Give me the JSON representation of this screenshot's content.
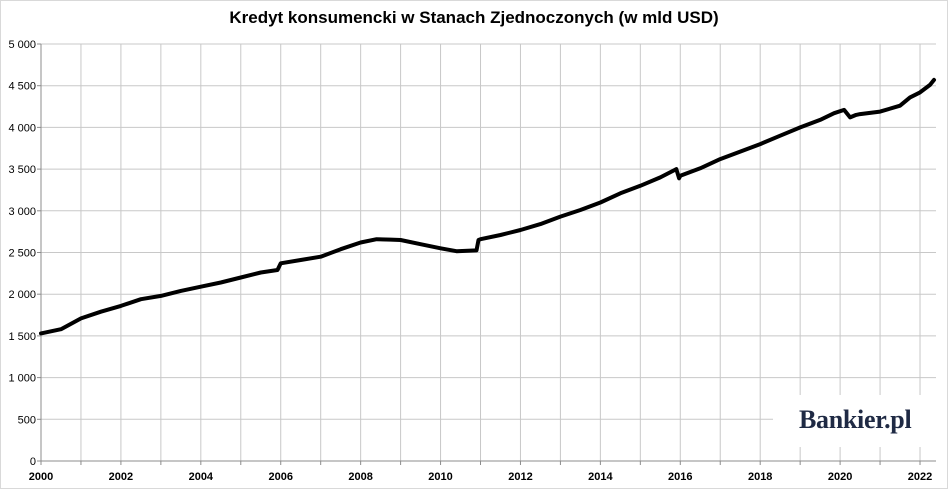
{
  "chart_data": {
    "type": "line",
    "title": "Kredyt konsumencki w Stanach Zjednoczonych (w mld USD)",
    "xlabel": "",
    "ylabel": "",
    "xlim": [
      2000,
      2022.4
    ],
    "ylim": [
      0,
      5000
    ],
    "y_ticks": [
      0,
      500,
      1000,
      1500,
      2000,
      2500,
      3000,
      3500,
      4000,
      4500,
      5000
    ],
    "y_tick_labels": [
      "0",
      "500",
      "1 000",
      "1 500",
      "2 000",
      "2 500",
      "3 000",
      "3 500",
      "4 000",
      "4 500",
      "5 000"
    ],
    "x_tick_labels": [
      "2000",
      "2002",
      "2004",
      "2006",
      "2008",
      "2010",
      "2012",
      "2014",
      "2016",
      "2018",
      "2020",
      "2022"
    ],
    "grid": true,
    "legend": "none",
    "series": [
      {
        "color": "#000000",
        "x": [
          2000.0,
          2000.5,
          2001.0,
          2001.5,
          2002.0,
          2002.5,
          2003.0,
          2003.5,
          2004.0,
          2004.5,
          2005.0,
          2005.5,
          2005.92,
          2006.0,
          2006.5,
          2007.0,
          2007.5,
          2008.0,
          2008.4,
          2008.75,
          2009.0,
          2009.5,
          2010.0,
          2010.4,
          2010.9,
          2010.95,
          2011.0,
          2011.5,
          2012.0,
          2012.5,
          2013.0,
          2013.5,
          2014.0,
          2014.5,
          2015.0,
          2015.5,
          2015.9,
          2015.97,
          2016.0,
          2016.5,
          2017.0,
          2017.5,
          2018.0,
          2018.5,
          2019.0,
          2019.5,
          2019.85,
          2020.1,
          2020.25,
          2020.4,
          2020.5,
          2021.0,
          2021.5,
          2021.75,
          2022.0,
          2022.25,
          2022.35
        ],
        "y": [
          1530,
          1580,
          1710,
          1790,
          1860,
          1940,
          1980,
          2040,
          2090,
          2140,
          2200,
          2260,
          2290,
          2370,
          2410,
          2450,
          2540,
          2620,
          2660,
          2655,
          2650,
          2600,
          2550,
          2515,
          2525,
          2650,
          2660,
          2710,
          2770,
          2840,
          2930,
          3010,
          3100,
          3210,
          3300,
          3400,
          3500,
          3390,
          3420,
          3510,
          3620,
          3710,
          3800,
          3900,
          4000,
          4090,
          4170,
          4210,
          4120,
          4150,
          4160,
          4190,
          4260,
          4360,
          4420,
          4510,
          4570
        ]
      }
    ]
  },
  "watermark": {
    "text": "Bankier.pl"
  }
}
